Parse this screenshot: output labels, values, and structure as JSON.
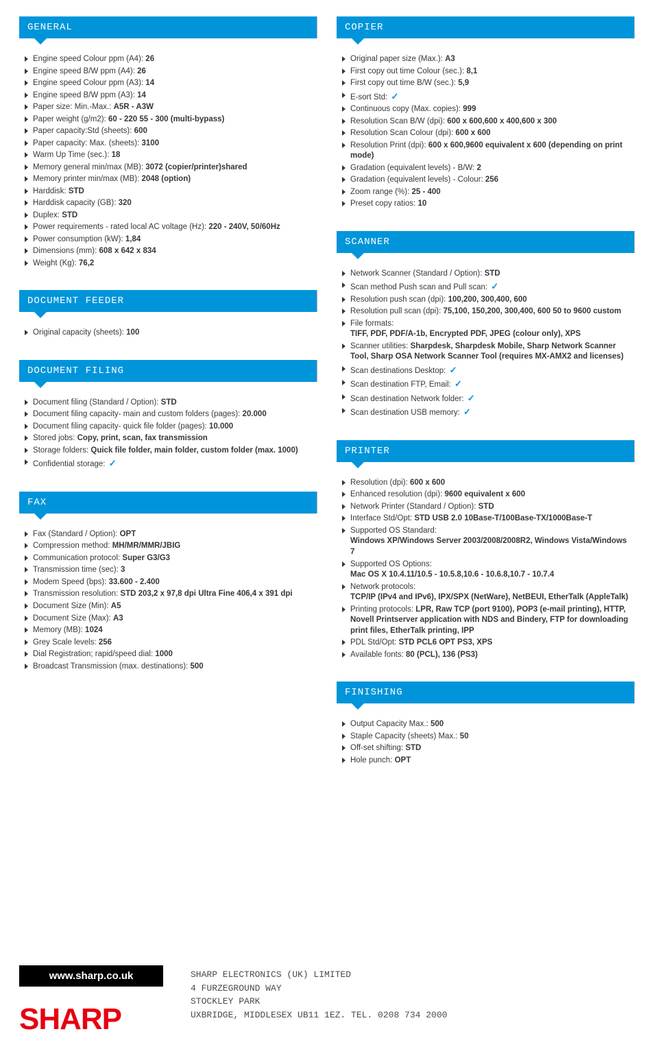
{
  "colors": {
    "accent": "#0095da",
    "text": "#373737",
    "logo": "#e60012",
    "footer_box": "#000000",
    "bg": "#ffffff"
  },
  "footer": {
    "url": "www.sharp.co.uk",
    "logo_text": "SHARP",
    "address": "SHARP ELECTRONICS (UK) LIMITED\n4 FURZEGROUND WAY\nSTOCKLEY PARK\nUXBRIDGE, MIDDLESEX UB11 1EZ. TEL. 0208 734 2000"
  },
  "left": [
    {
      "title": "GENERAL",
      "items": [
        {
          "label": "Engine speed Colour ppm (A4):",
          "value": "26"
        },
        {
          "label": "Engine speed B/W ppm (A4):",
          "value": "26"
        },
        {
          "label": "Engine speed Colour ppm (A3):",
          "value": "14"
        },
        {
          "label": "Engine speed B/W ppm (A3):",
          "value": "14"
        },
        {
          "label": "Paper size: Min.-Max.:",
          "value": "A5R - A3W"
        },
        {
          "label": "Paper weight (g/m2):",
          "value": "60 - 220 55 - 300 (multi-bypass)"
        },
        {
          "label": "Paper capacity:Std (sheets):",
          "value": "600"
        },
        {
          "label": "Paper capacity: Max. (sheets):",
          "value": "3100"
        },
        {
          "label": "Warm Up Time (sec.):",
          "value": "18"
        },
        {
          "label": "Memory general min/max (MB):",
          "value": "3072 (copier/printer)shared"
        },
        {
          "label": "Memory printer min/max (MB):",
          "value": "2048 (option)"
        },
        {
          "label": "Harddisk:",
          "value": "STD"
        },
        {
          "label": "Harddisk capacity (GB):",
          "value": "320"
        },
        {
          "label": "Duplex:",
          "value": "STD"
        },
        {
          "label": "Power requirements - rated local AC voltage (Hz):",
          "value": "220 - 240V, 50/60Hz"
        },
        {
          "label": "Power consumption (kW):",
          "value": "1,84"
        },
        {
          "label": "Dimensions (mm):",
          "value": "608 x 642 x 834"
        },
        {
          "label": "Weight (Kg):",
          "value": "76,2"
        }
      ]
    },
    {
      "title": "DOCUMENT FEEDER",
      "items": [
        {
          "label": "Original capacity (sheets):",
          "value": "100"
        }
      ]
    },
    {
      "title": "DOCUMENT FILING",
      "items": [
        {
          "label": "Document filing (Standard / Option):",
          "value": "STD"
        },
        {
          "label": "Document filing capacity- main and custom folders (pages):",
          "value": "20.000"
        },
        {
          "label": "Document filing capacity- quick file folder (pages):",
          "value": "10.000"
        },
        {
          "label": "Stored jobs:",
          "value": "Copy, print, scan, fax transmission"
        },
        {
          "label": "Storage folders:",
          "value": "Quick file folder, main folder, custom folder (max. 1000)"
        },
        {
          "label": "Confidential storage:",
          "check": true
        }
      ]
    },
    {
      "title": "FAX",
      "items": [
        {
          "label": "Fax (Standard / Option):",
          "value": "OPT"
        },
        {
          "label": "Compression method:",
          "value": "MH/MR/MMR/JBIG"
        },
        {
          "label": "Communication protocol:",
          "value": "Super G3/G3"
        },
        {
          "label": "Transmission time (sec):",
          "value": "3"
        },
        {
          "label": "Modem Speed (bps):",
          "value": "33.600 - 2.400"
        },
        {
          "label": "Transmission resolution:",
          "value": "STD 203,2 x 97,8 dpi Ultra Fine 406,4 x 391 dpi"
        },
        {
          "label": "Document Size (Min):",
          "value": "A5"
        },
        {
          "label": "Document Size (Max):",
          "value": "A3"
        },
        {
          "label": "Memory (MB):",
          "value": "1024"
        },
        {
          "label": "Grey Scale levels:",
          "value": "256"
        },
        {
          "label": "Dial Registration; rapid/speed dial:",
          "value": "1000"
        },
        {
          "label": "Broadcast Transmission (max. destinations):",
          "value": "500"
        }
      ]
    }
  ],
  "right": [
    {
      "title": "COPIER",
      "items": [
        {
          "label": "Original paper size (Max.):",
          "value": "A3"
        },
        {
          "label": "First copy out time Colour (sec.):",
          "value": "8,1"
        },
        {
          "label": "First copy out time B/W (sec.):",
          "value": "5,9"
        },
        {
          "label": "E-sort Std:",
          "check": true
        },
        {
          "label": "Continuous copy (Max. copies):",
          "value": "999"
        },
        {
          "label": "Resolution Scan B/W (dpi):",
          "value": "600 x 600,600 x 400,600 x 300"
        },
        {
          "label": "Resolution Scan Colour (dpi):",
          "value": "600 x 600"
        },
        {
          "label": "Resolution Print (dpi):",
          "value": "600 x 600,9600 equivalent x 600 (depending on print mode)"
        },
        {
          "label": "Gradation (equivalent levels) - B/W:",
          "value": "2"
        },
        {
          "label": "Gradation (equivalent levels) - Colour:",
          "value": "256"
        },
        {
          "label": "Zoom range (%):",
          "value": "25 - 400"
        },
        {
          "label": "Preset copy ratios:",
          "value": "10"
        }
      ]
    },
    {
      "title": "SCANNER",
      "items": [
        {
          "label": "Network Scanner (Standard / Option):",
          "value": "STD"
        },
        {
          "label": "Scan method Push scan and Pull scan:",
          "check": true
        },
        {
          "label": "Resolution push scan (dpi):",
          "value": "100,200, 300,400, 600"
        },
        {
          "label": "Resolution pull scan (dpi):",
          "value": "75,100, 150,200, 300,400, 600 50 to 9600 custom"
        },
        {
          "label": "File formats:",
          "value_break": true,
          "value": "TIFF, PDF, PDF/A-1b, Encrypted PDF, JPEG (colour only), XPS"
        },
        {
          "label": "Scanner utilities:",
          "value": "Sharpdesk, Sharpdesk Mobile, Sharp Network Scanner Tool, Sharp OSA Network Scanner Tool (requires MX-AMX2 and licenses)"
        },
        {
          "label": "Scan destinations Desktop:",
          "check": true
        },
        {
          "label": "Scan destination FTP, Email:",
          "check": true
        },
        {
          "label": "Scan destination Network folder:",
          "check": true
        },
        {
          "label": "Scan destination USB memory:",
          "check": true
        }
      ]
    },
    {
      "title": "PRINTER",
      "items": [
        {
          "label": "Resolution (dpi):",
          "value": "600 x 600"
        },
        {
          "label": "Enhanced resolution (dpi):",
          "value": "9600 equivalent x 600"
        },
        {
          "label": "Network Printer (Standard / Option):",
          "value": "STD"
        },
        {
          "label": "Interface Std/Opt:",
          "value": "STD USB 2.0 10Base-T/100Base-TX/1000Base-T"
        },
        {
          "label": "Supported OS Standard:",
          "value_break": true,
          "value": "Windows XP/Windows Server 2003/2008/2008R2, Windows Vista/Windows 7"
        },
        {
          "label": "Supported OS Options:",
          "value_break": true,
          "value": "Mac OS X 10.4.11/10.5 - 10.5.8,10.6 - 10.6.8,10.7 - 10.7.4"
        },
        {
          "label": "Network protocols:",
          "value_break": true,
          "value": "TCP/IP (IPv4 and IPv6), IPX/SPX (NetWare), NetBEUI, EtherTalk (AppleTalk)"
        },
        {
          "label": "Printing protocols:",
          "value": "LPR, Raw TCP (port 9100), POP3 (e-mail printing), HTTP, Novell Printserver application with NDS and Bindery, FTP for downloading print files, EtherTalk printing, IPP"
        },
        {
          "label": "PDL Std/Opt:",
          "value": "STD PCL6 OPT PS3, XPS"
        },
        {
          "label": "Available fonts:",
          "value": "80 (PCL), 136 (PS3)"
        }
      ]
    },
    {
      "title": "FINISHING",
      "items": [
        {
          "label": "Output Capacity Max.:",
          "value": "500"
        },
        {
          "label": "Staple Capacity (sheets) Max.:",
          "value": "50"
        },
        {
          "label": "Off-set shifting:",
          "value": "STD"
        },
        {
          "label": "Hole punch:",
          "value": "OPT"
        }
      ]
    }
  ]
}
